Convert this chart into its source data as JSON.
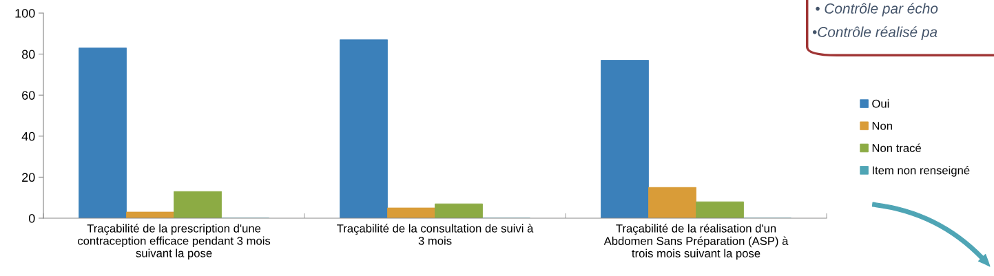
{
  "chart_data": {
    "type": "bar",
    "categories": [
      "Traçabilité de la prescription d'une\ncontraception efficace pendant 3 mois\nsuivant la pose",
      "Traçabilité de la consultation de suivi à\n3 mois",
      "Traçabilité de la réalisation d'un\nAbdomen Sans Préparation (ASP) à\ntrois mois suivant la pose"
    ],
    "series": [
      {
        "name": "Oui",
        "color": "#3b80ba",
        "values": [
          83,
          87,
          77
        ]
      },
      {
        "name": "Non",
        "color": "#d99c38",
        "values": [
          3,
          5,
          15
        ]
      },
      {
        "name": "Non tracé",
        "color": "#8cab44",
        "values": [
          13,
          7,
          8
        ]
      },
      {
        "name": "Item non renseigné",
        "color": "#4fa5b5",
        "values": [
          0,
          0,
          0
        ]
      }
    ],
    "ylim": [
      0,
      100
    ],
    "yticks": [
      0,
      20,
      40,
      60,
      80,
      100
    ],
    "grid": false,
    "legend": "right",
    "annotations": [
      "• Contrôle par écho",
      "•Contrôle réalisé pa"
    ]
  }
}
